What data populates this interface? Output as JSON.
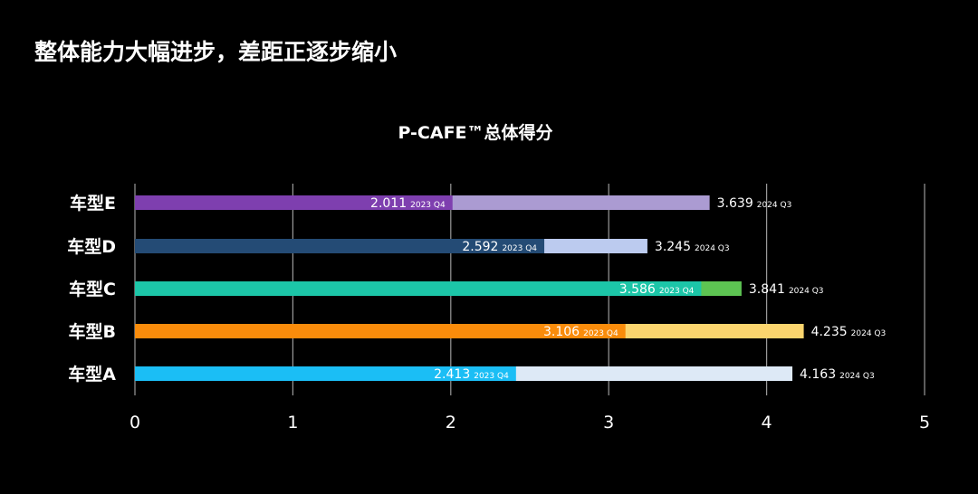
{
  "slide": {
    "title": "整体能力大幅进步，差距正逐步缩小"
  },
  "chart_data": {
    "type": "bar",
    "title": "P-CAFE™总体得分",
    "orientation": "horizontal",
    "xlim": [
      0,
      5
    ],
    "x_ticks": [
      "0",
      "1",
      "2",
      "3",
      "4",
      "5"
    ],
    "grid": true,
    "categories": [
      "车型E",
      "车型D",
      "车型C",
      "车型B",
      "车型A"
    ],
    "series": [
      {
        "name": "2023 Q4",
        "values": [
          2.011,
          2.592,
          3.586,
          3.106,
          2.413
        ],
        "labels": [
          "2.011",
          "2.592",
          "3.586",
          "3.106",
          "2.413"
        ],
        "colors": [
          "#7E3FAF",
          "#244B75",
          "#1CC6A8",
          "#FA8C0B",
          "#1BBEF5"
        ]
      },
      {
        "name": "2024 Q3",
        "values": [
          3.639,
          3.245,
          3.841,
          4.235,
          4.163
        ],
        "labels": [
          "3.639",
          "3.245",
          "3.841",
          "4.235",
          "4.163"
        ],
        "colors": [
          "#AB9BD2",
          "#BCCBEF",
          "#5DC452",
          "#FBD56E",
          "#DDE9F6"
        ]
      }
    ]
  }
}
